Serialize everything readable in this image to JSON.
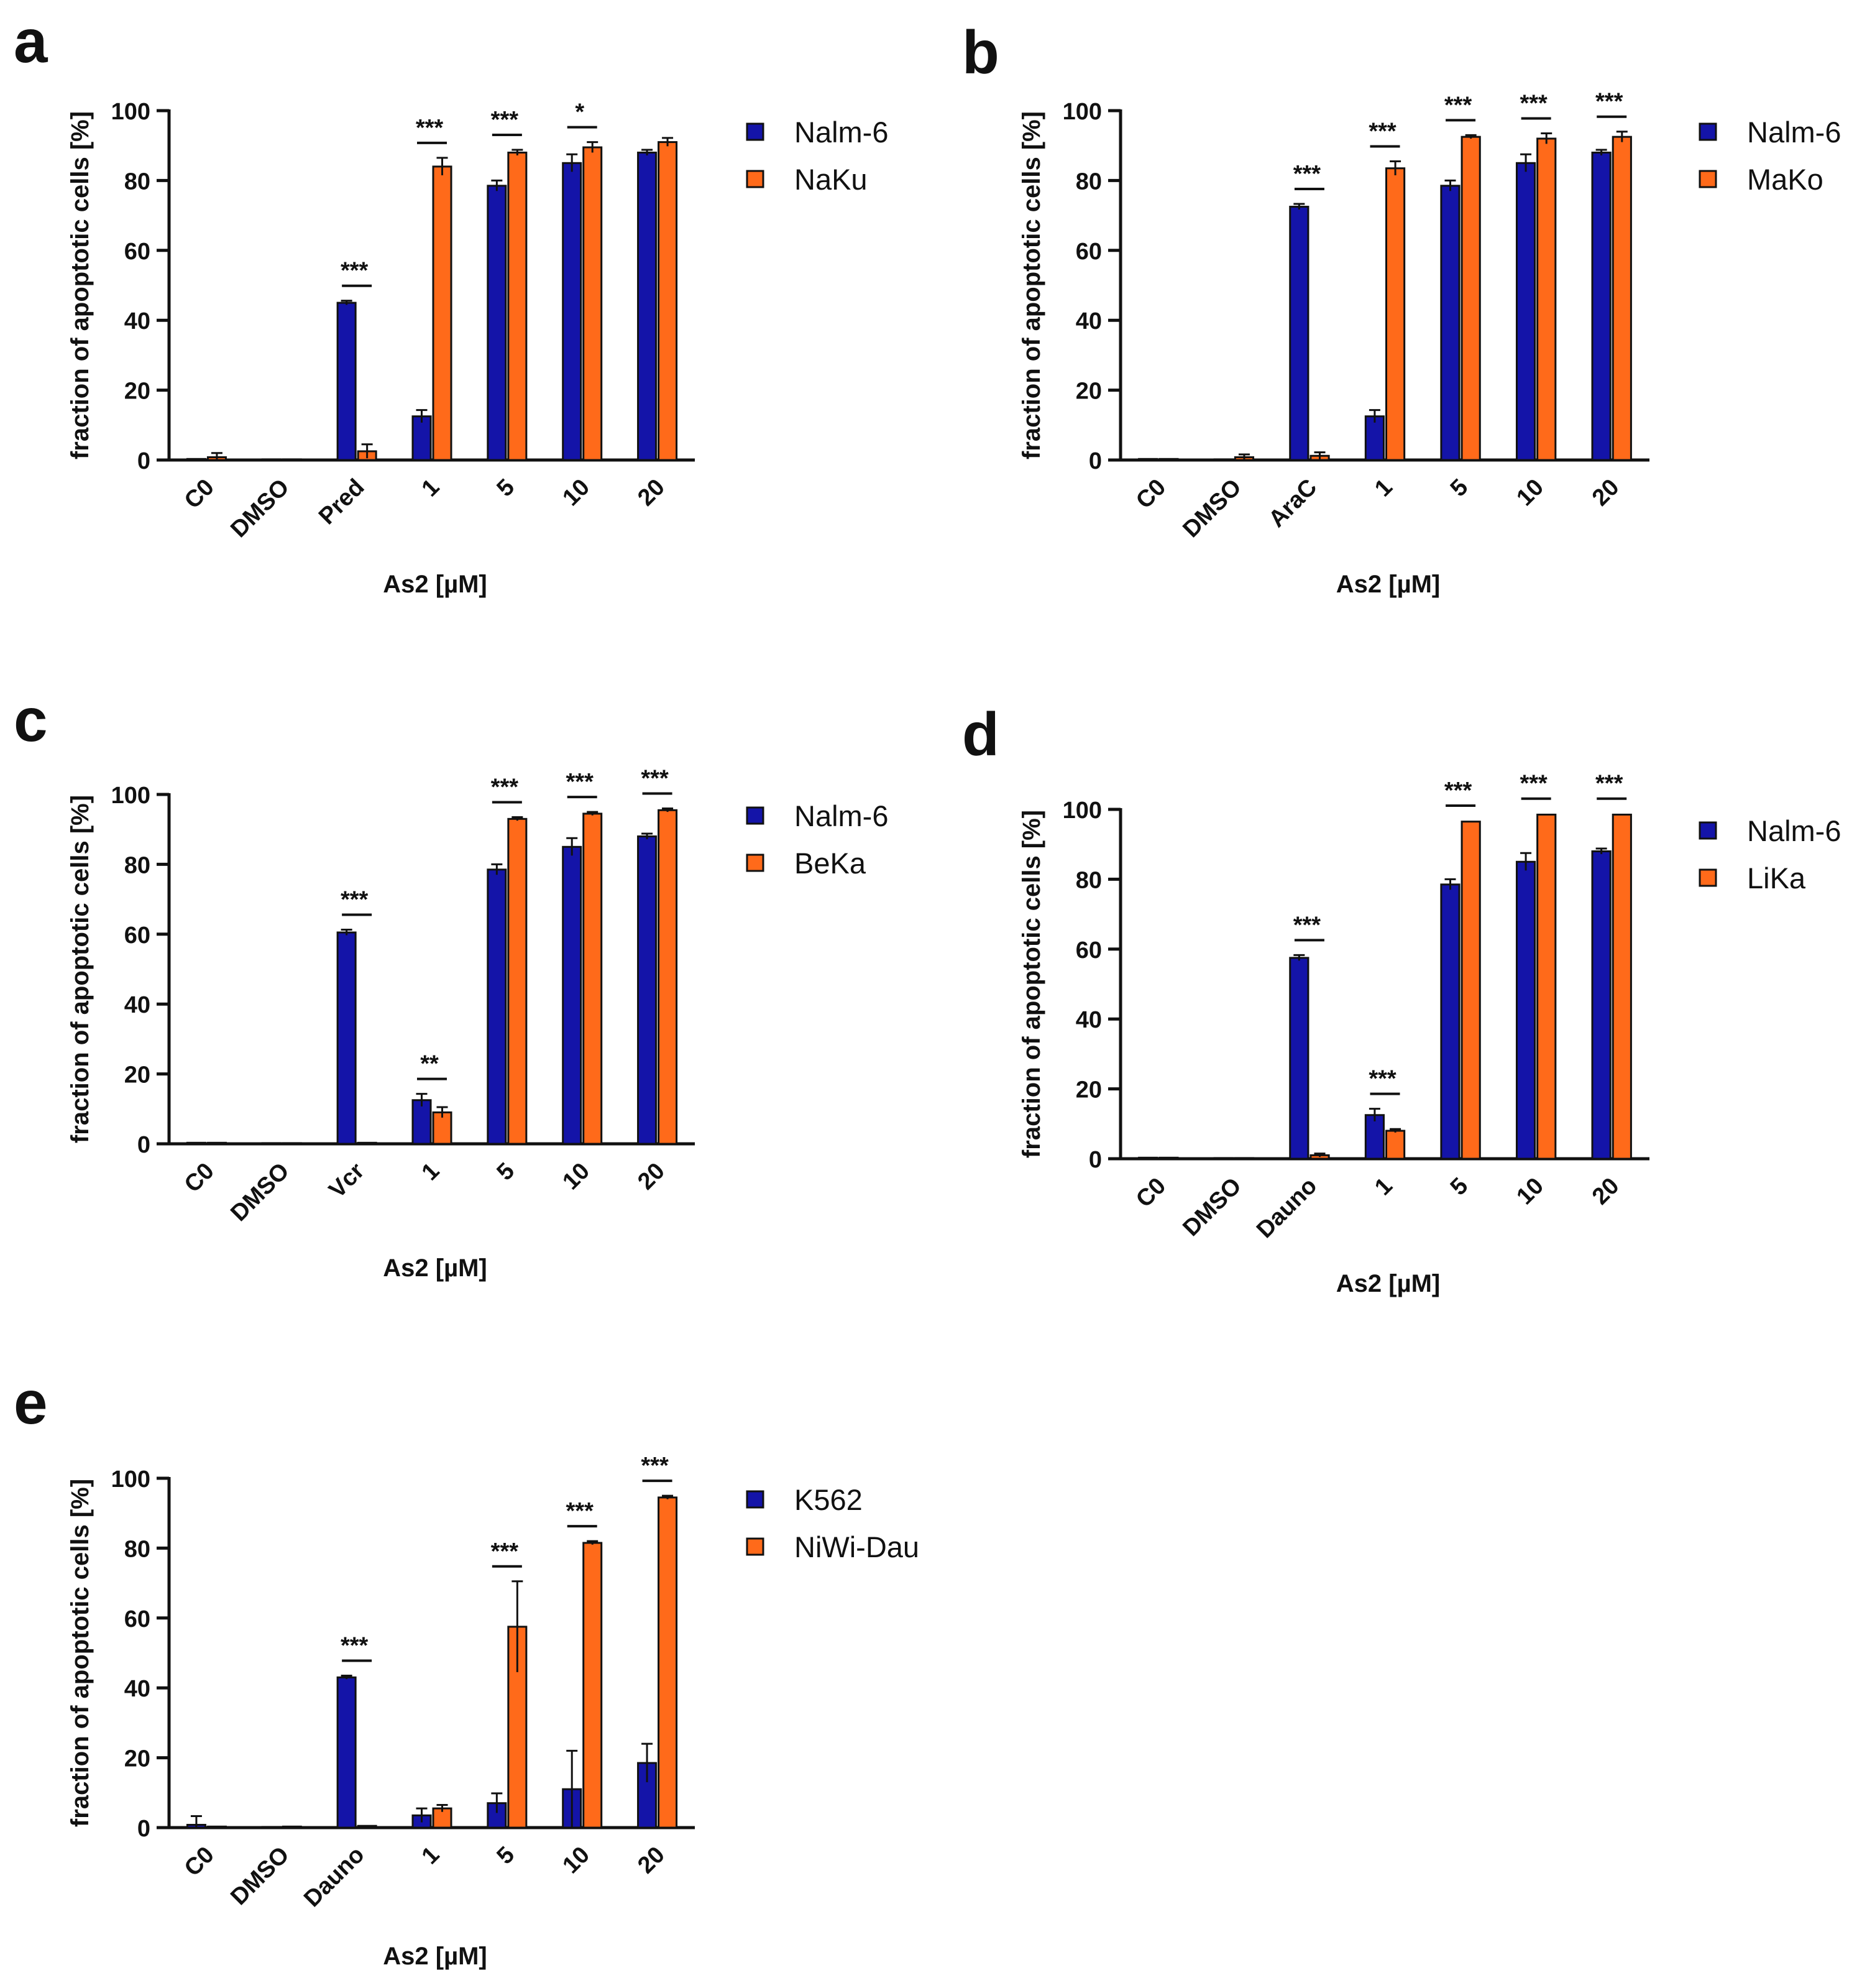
{
  "figure": {
    "colors": {
      "series1": "#1414A8",
      "series2": "#FF6A1A",
      "axis": "#111111"
    }
  },
  "chart_data": [
    {
      "panel": "a",
      "type": "bar",
      "title": "",
      "xlabel": "As2 [µM]",
      "ylabel": "fraction of apoptotic cells [%]",
      "ylim": [
        0,
        100
      ],
      "yticks": [
        "0",
        "20",
        "40",
        "60",
        "80",
        "100"
      ],
      "categories": [
        "C0",
        "DMSO",
        "Pred",
        "1",
        "5",
        "10",
        "20"
      ],
      "legend_position": "top-right",
      "series": [
        {
          "name": "Nalm-6",
          "values": [
            0.3,
            0.2,
            45,
            12.5,
            78.5,
            85,
            88
          ],
          "errors": [
            0.3,
            0.2,
            0.6,
            1.8,
            1.5,
            2.5,
            0.8
          ]
        },
        {
          "name": "NaKu",
          "values": [
            0.8,
            0.2,
            2.5,
            84,
            88,
            89.5,
            91
          ],
          "errors": [
            1.2,
            0.2,
            2,
            2.5,
            0.8,
            1.5,
            1.2
          ]
        }
      ],
      "significance": [
        "",
        "",
        "***",
        "***",
        "***",
        "*",
        ""
      ]
    },
    {
      "panel": "b",
      "type": "bar",
      "title": "",
      "xlabel": "As2 [µM]",
      "ylabel": "fraction of apoptotic cells [%]",
      "ylim": [
        0,
        100
      ],
      "yticks": [
        "0",
        "20",
        "40",
        "60",
        "80",
        "100"
      ],
      "categories": [
        "C0",
        "DMSO",
        "AraC",
        "1",
        "5",
        "10",
        "20"
      ],
      "legend_position": "top-right",
      "series": [
        {
          "name": "Nalm-6",
          "values": [
            0.3,
            0.2,
            72.5,
            12.5,
            78.5,
            85,
            88
          ],
          "errors": [
            0.3,
            0.2,
            0.8,
            1.8,
            1.5,
            2.5,
            0.8
          ]
        },
        {
          "name": "MaKo",
          "values": [
            0.3,
            0.8,
            1.2,
            83.5,
            92.5,
            92,
            92.5
          ],
          "errors": [
            0.3,
            0.8,
            1,
            2,
            0.5,
            1.5,
            1.5
          ]
        }
      ],
      "significance": [
        "",
        "",
        "***",
        "***",
        "***",
        "***",
        "***"
      ]
    },
    {
      "panel": "c",
      "type": "bar",
      "title": "",
      "xlabel": "As2 [µM]",
      "ylabel": "fraction of apoptotic cells [%]",
      "ylim": [
        0,
        100
      ],
      "yticks": [
        "0",
        "20",
        "40",
        "60",
        "80",
        "100"
      ],
      "categories": [
        "C0",
        "DMSO",
        "Vcr",
        "1",
        "5",
        "10",
        "20"
      ],
      "legend_position": "top-right",
      "series": [
        {
          "name": "Nalm-6",
          "values": [
            0.3,
            0.2,
            60.5,
            12.5,
            78.5,
            85,
            88
          ],
          "errors": [
            0.3,
            0.2,
            0.8,
            1.8,
            1.5,
            2.5,
            0.8
          ]
        },
        {
          "name": "BeKa",
          "values": [
            0.3,
            0.2,
            0.3,
            9,
            93,
            94.5,
            95.5
          ],
          "errors": [
            0.3,
            0.2,
            0.3,
            1.5,
            0.5,
            0.5,
            0.5
          ]
        }
      ],
      "significance": [
        "",
        "",
        "***",
        "**",
        "***",
        "***",
        "***"
      ]
    },
    {
      "panel": "d",
      "type": "bar",
      "title": "",
      "xlabel": "As2 [µM]",
      "ylabel": "fraction of apoptotic cells [%]",
      "ylim": [
        0,
        100
      ],
      "yticks": [
        "0",
        "20",
        "40",
        "60",
        "80",
        "100"
      ],
      "categories": [
        "C0",
        "DMSO",
        "Dauno",
        "1",
        "5",
        "10",
        "20"
      ],
      "legend_position": "top-right",
      "series": [
        {
          "name": "Nalm-6",
          "values": [
            0.3,
            0.2,
            57.5,
            12.5,
            78.5,
            85,
            88
          ],
          "errors": [
            0.3,
            0.2,
            0.8,
            1.8,
            1.5,
            2.5,
            0.8
          ]
        },
        {
          "name": "LiKa",
          "values": [
            0.3,
            0.2,
            1,
            8,
            96.5,
            98.5,
            98.5
          ],
          "errors": [
            0.3,
            0.2,
            0.5,
            0.5,
            0.3,
            0.3,
            0.3
          ]
        }
      ],
      "significance": [
        "",
        "",
        "***",
        "***",
        "***",
        "***",
        "***"
      ]
    },
    {
      "panel": "e",
      "type": "bar",
      "title": "",
      "xlabel": "As2 [µM]",
      "ylabel": "fraction of apoptotic cells [%]",
      "ylim": [
        0,
        100
      ],
      "yticks": [
        "0",
        "20",
        "40",
        "60",
        "80",
        "100"
      ],
      "categories": [
        "C0",
        "DMSO",
        "Dauno",
        "1",
        "5",
        "10",
        "20"
      ],
      "legend_position": "top-right",
      "series": [
        {
          "name": "K562",
          "values": [
            0.8,
            0.2,
            43,
            3.5,
            7,
            11,
            18.5
          ],
          "errors": [
            2.5,
            0.2,
            0.5,
            2,
            2.8,
            11,
            5.5
          ]
        },
        {
          "name": "NiWi-Dau",
          "values": [
            0.3,
            0.3,
            0.5,
            5.5,
            57.5,
            81.5,
            94.5
          ],
          "errors": [
            0.3,
            0.3,
            0.3,
            1,
            13,
            0.5,
            0.5
          ]
        }
      ],
      "significance": [
        "",
        "",
        "***",
        "",
        "***",
        "***",
        "***"
      ]
    }
  ]
}
